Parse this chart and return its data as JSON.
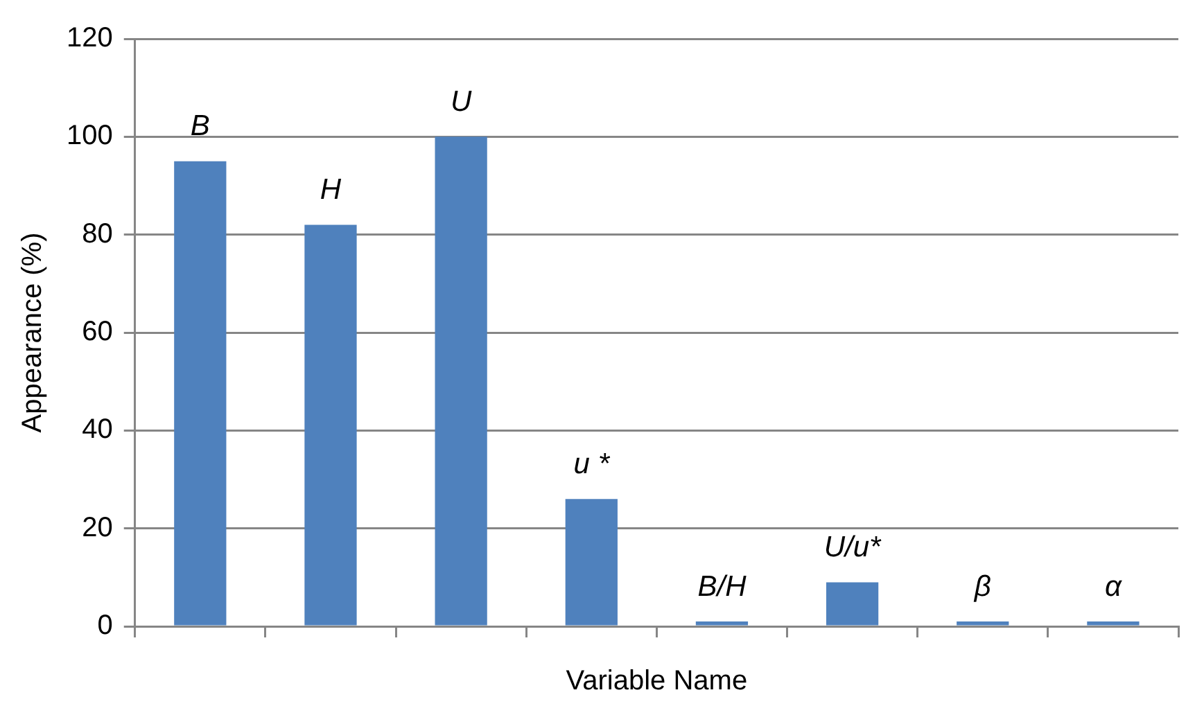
{
  "chart_data": {
    "type": "bar",
    "xlabel": "Variable Name",
    "ylabel": "Appearance (%)",
    "categories": [
      "B",
      "H",
      "U",
      "u *",
      "B/H",
      "U/u*",
      "β",
      "α"
    ],
    "values": [
      95,
      82,
      100,
      26,
      1,
      9,
      1,
      1
    ],
    "color": "#4f81bd",
    "ylim": [
      0,
      120
    ],
    "yticks": [
      0,
      20,
      40,
      60,
      80,
      100,
      120
    ],
    "grid": "y",
    "tick_labels": "y"
  }
}
